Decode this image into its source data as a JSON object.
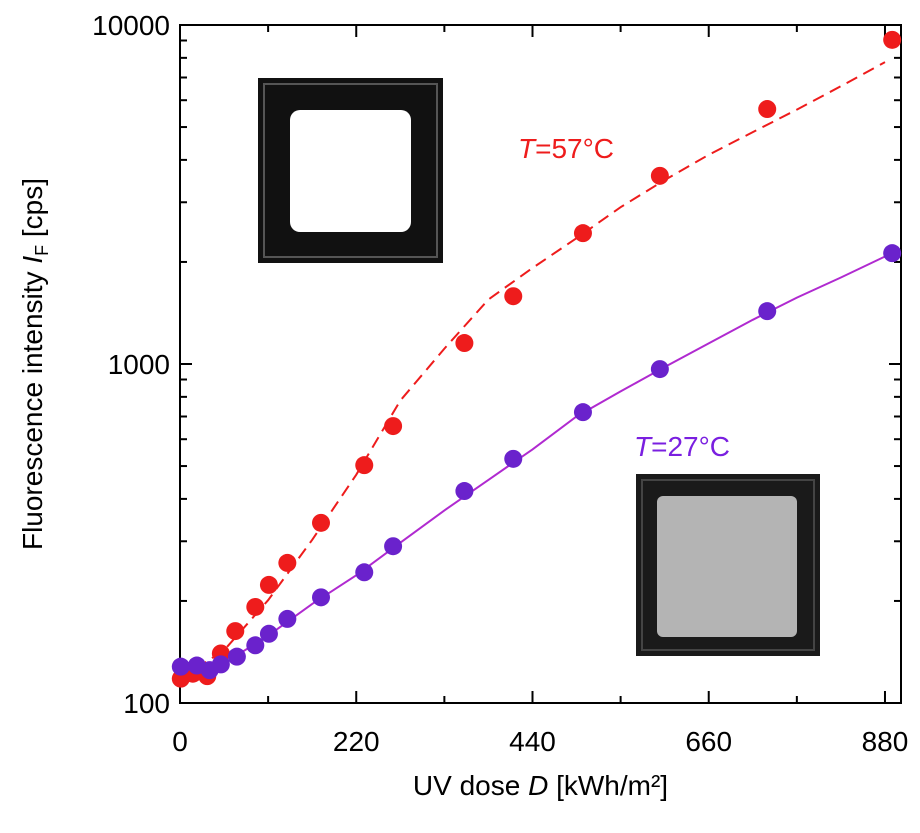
{
  "chart_data": {
    "type": "scatter",
    "xlabel": [
      "UV dose ",
      "D",
      " [kWh/m²]"
    ],
    "ylabel": [
      "Fluorescence intensity ",
      "I",
      "F",
      " [cps]"
    ],
    "xlim": [
      0,
      900
    ],
    "xticks": [
      0,
      220,
      440,
      660,
      880
    ],
    "ylim": [
      100,
      10000
    ],
    "yticks": [
      100,
      1000,
      10000
    ],
    "ylog": true,
    "series": [
      {
        "color": "#ee1c1c",
        "x": [
          1,
          16,
          34,
          51,
          69,
          94,
          111,
          134,
          176,
          230,
          266,
          355,
          416,
          503,
          599,
          733,
          889
        ],
        "values": [
          118,
          122,
          120,
          140,
          163,
          192,
          223,
          259,
          340,
          503,
          656,
          1153,
          1585,
          2432,
          3590,
          5650,
          9040
        ]
      },
      {
        "color": "#6a22cc",
        "x": [
          1,
          21,
          37,
          51,
          71,
          94,
          111,
          134,
          176,
          230,
          266,
          355,
          416,
          503,
          599,
          733,
          889
        ],
        "values": [
          128,
          129,
          125,
          130,
          137,
          148,
          160,
          177,
          205,
          243,
          290,
          422,
          525,
          721,
          966,
          1432,
          2123
        ]
      }
    ],
    "fits": [
      {
        "color": "#ee1c1c",
        "dash": true,
        "x": [
          0,
          55,
          110,
          165,
          220,
          275,
          330,
          385,
          440,
          495,
          550,
          605,
          660,
          715,
          770,
          825,
          880
        ],
        "values": [
          118,
          143,
          201,
          303,
          471,
          780,
          1110,
          1550,
          1920,
          2350,
          2900,
          3490,
          4140,
          4830,
          5630,
          6600,
          7770
        ]
      },
      {
        "color": "#b02ad0",
        "dash": false,
        "x": [
          0,
          55,
          110,
          165,
          220,
          275,
          330,
          385,
          440,
          495,
          550,
          605,
          660,
          715,
          770,
          825,
          880
        ],
        "values": [
          125,
          131,
          158,
          196,
          238,
          297,
          370,
          455,
          560,
          700,
          830,
          980,
          1150,
          1350,
          1570,
          1800,
          2075
        ]
      }
    ],
    "annotations": [
      {
        "symbol": "T",
        "text": "=57°C",
        "color": "#ee1c1c"
      },
      {
        "symbol": "T",
        "text": "=27°C",
        "color": "#7a1fe0"
      }
    ]
  }
}
